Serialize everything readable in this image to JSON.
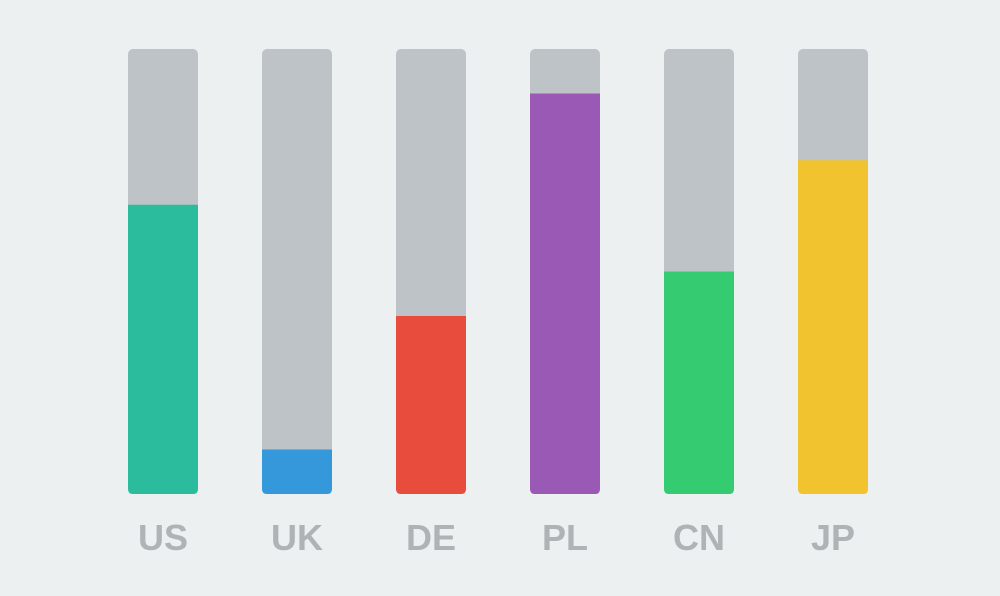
{
  "chart_data": {
    "type": "bar",
    "categories": [
      "US",
      "UK",
      "DE",
      "PL",
      "CN",
      "JP"
    ],
    "values": [
      65,
      10,
      40,
      90,
      50,
      75
    ],
    "ylim": [
      0,
      100
    ],
    "colors": [
      "#2abc9c",
      "#3598db",
      "#e74c3c",
      "#9b59b6",
      "#35cb71",
      "#f0c32f"
    ],
    "track_color": "#bdc3c7",
    "grid": false,
    "legend": "none"
  }
}
